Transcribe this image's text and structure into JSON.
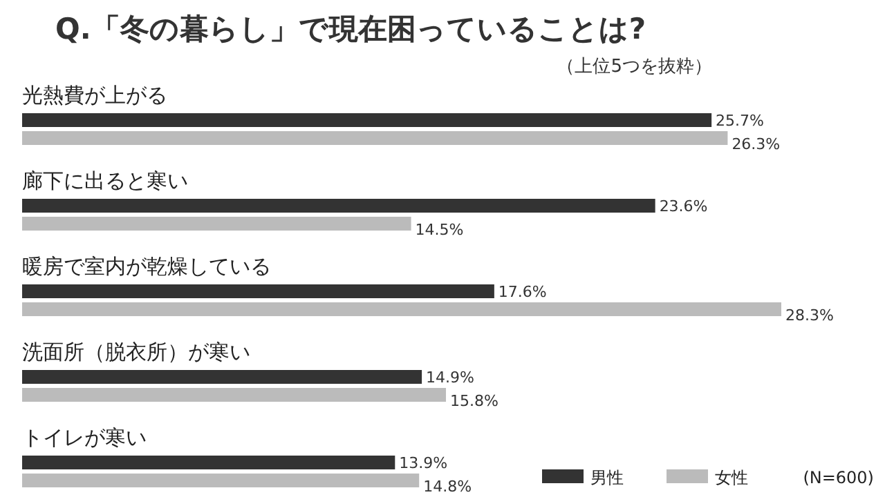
{
  "chart_data": {
    "type": "bar",
    "orientation": "horizontal",
    "title": "Q.「冬の暮らし」で現在困っていることは?",
    "subtitle": "（上位5つを抜粋）",
    "categories": [
      "光熱費が上がる",
      "廊下に出ると寒い",
      "暖房で室内が乾燥している",
      "洗面所（脱衣所）が寒い",
      "トイレが寒い"
    ],
    "series": [
      {
        "name": "男性",
        "color": "#333333",
        "values": [
          25.7,
          23.6,
          17.6,
          14.9,
          13.9
        ],
        "value_labels": [
          "25.7%",
          "23.6%",
          "17.6%",
          "14.9%",
          "13.9%"
        ]
      },
      {
        "name": "女性",
        "color": "#bbbbbb",
        "values": [
          26.3,
          14.5,
          28.3,
          15.8,
          14.8
        ],
        "value_labels": [
          "26.3%",
          "14.5%",
          "28.3%",
          "15.8%",
          "14.8%"
        ]
      }
    ],
    "legend": "bottom right",
    "annotations": [
      "(N=600)"
    ]
  }
}
